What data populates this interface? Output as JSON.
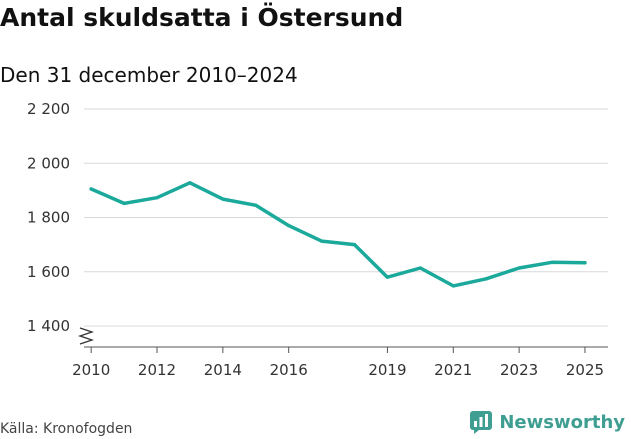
{
  "title": "Antal skuldsatta i Östersund",
  "subtitle": "Den 31 december 2010–2024",
  "source": "Källa: Kronofogden",
  "brand": {
    "name": "Newsworthy",
    "color": "#3f9e92",
    "icon": "bar-chart-icon"
  },
  "chart_data": {
    "type": "line",
    "title": "Antal skuldsatta i Östersund",
    "subtitle": "Den 31 december 2010–2024",
    "xlabel": "",
    "ylabel": "",
    "xlim": [
      2009.6,
      2025.7
    ],
    "ylim": [
      1400,
      2200
    ],
    "y_ticks": [
      1400,
      1600,
      1800,
      2000,
      2200
    ],
    "y_tick_labels": [
      "1 400",
      "1 600",
      "1 800",
      "2 000",
      "2 200"
    ],
    "x_ticks": [
      2010,
      2012,
      2014,
      2016,
      2019,
      2021,
      2023,
      2025
    ],
    "x_tick_labels": [
      "2010",
      "2012",
      "2014",
      "2016",
      "2019",
      "2021",
      "2023",
      "2025"
    ],
    "grid": true,
    "axis_break": true,
    "line_color": "#1aa99a",
    "series": [
      {
        "name": "Antal skuldsatta",
        "x": [
          2010,
          2011,
          2012,
          2013,
          2014,
          2015,
          2016,
          2017,
          2018,
          2019,
          2020,
          2021,
          2022,
          2023,
          2024,
          2025
        ],
        "values": [
          1905,
          1852,
          1873,
          1928,
          1868,
          1845,
          1770,
          1713,
          1700,
          1580,
          1614,
          1548,
          1574,
          1614,
          1635,
          1633
        ]
      }
    ]
  }
}
